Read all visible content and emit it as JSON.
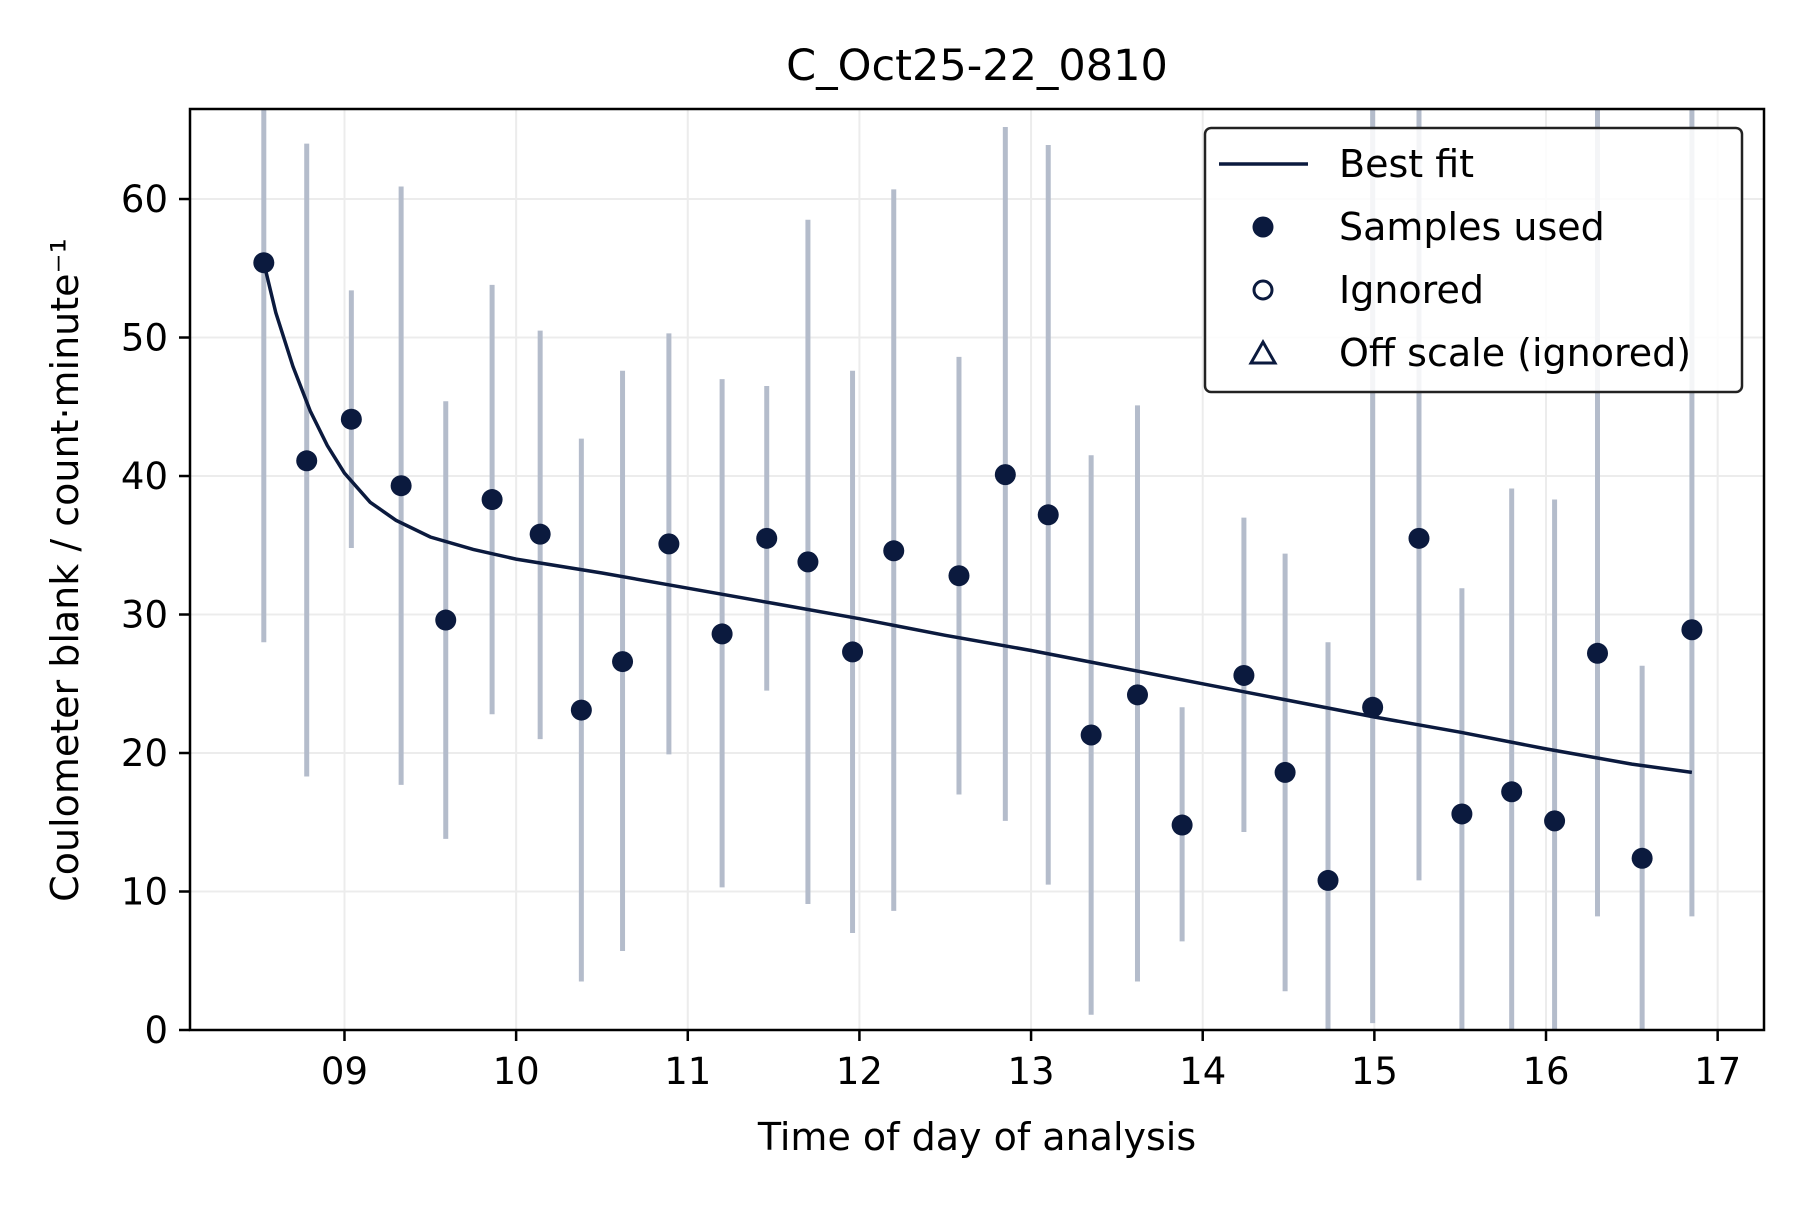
{
  "chart_data": {
    "type": "scatter",
    "title": "C_Oct25-22_0810",
    "xlabel": "Time of day of analysis",
    "ylabel": "Coulometer blank / count·minute⁻¹",
    "xlim": [
      8.1,
      17.27
    ],
    "ylim": [
      0,
      66.5
    ],
    "x_ticks": [
      {
        "value": 9,
        "label": "09"
      },
      {
        "value": 10,
        "label": "10"
      },
      {
        "value": 11,
        "label": "11"
      },
      {
        "value": 12,
        "label": "12"
      },
      {
        "value": 13,
        "label": "13"
      },
      {
        "value": 14,
        "label": "14"
      },
      {
        "value": 15,
        "label": "15"
      },
      {
        "value": 16,
        "label": "16"
      },
      {
        "value": 17,
        "label": "17"
      }
    ],
    "y_ticks": [
      {
        "value": 0,
        "label": "0"
      },
      {
        "value": 10,
        "label": "10"
      },
      {
        "value": 20,
        "label": "20"
      },
      {
        "value": 30,
        "label": "30"
      },
      {
        "value": 40,
        "label": "40"
      },
      {
        "value": 50,
        "label": "50"
      },
      {
        "value": 60,
        "label": "60"
      }
    ],
    "grid": true,
    "legend_position": "top-right",
    "legend": [
      {
        "label": "Best fit",
        "marker": "line"
      },
      {
        "label": "Samples used",
        "marker": "filled-circle"
      },
      {
        "label": "Ignored",
        "marker": "open-circle"
      },
      {
        "label": "Off scale (ignored)",
        "marker": "open-triangle"
      }
    ],
    "colors": {
      "series": "#0b1a3e",
      "errorbar": "#b4bccb",
      "grid": "#ececec"
    },
    "samples_used": [
      {
        "x": 8.53,
        "y": 55.4,
        "lo": 28.0,
        "hi": 66.5
      },
      {
        "x": 8.78,
        "y": 41.1,
        "lo": 18.3,
        "hi": 64.0
      },
      {
        "x": 9.04,
        "y": 44.1,
        "lo": 34.8,
        "hi": 53.4
      },
      {
        "x": 9.33,
        "y": 39.3,
        "lo": 17.7,
        "hi": 60.9
      },
      {
        "x": 9.59,
        "y": 29.6,
        "lo": 13.8,
        "hi": 45.4
      },
      {
        "x": 9.86,
        "y": 38.3,
        "lo": 22.8,
        "hi": 53.8
      },
      {
        "x": 10.14,
        "y": 35.8,
        "lo": 21.0,
        "hi": 50.5
      },
      {
        "x": 10.38,
        "y": 23.1,
        "lo": 3.5,
        "hi": 42.7
      },
      {
        "x": 10.62,
        "y": 26.6,
        "lo": 5.7,
        "hi": 47.6
      },
      {
        "x": 10.89,
        "y": 35.1,
        "lo": 19.9,
        "hi": 50.3
      },
      {
        "x": 11.2,
        "y": 28.6,
        "lo": 10.3,
        "hi": 47.0
      },
      {
        "x": 11.46,
        "y": 35.5,
        "lo": 24.5,
        "hi": 46.5
      },
      {
        "x": 11.7,
        "y": 33.8,
        "lo": 9.1,
        "hi": 58.5
      },
      {
        "x": 11.96,
        "y": 27.3,
        "lo": 7.0,
        "hi": 47.6
      },
      {
        "x": 12.2,
        "y": 34.6,
        "lo": 8.6,
        "hi": 60.7
      },
      {
        "x": 12.58,
        "y": 32.8,
        "lo": 17.0,
        "hi": 48.6
      },
      {
        "x": 12.85,
        "y": 40.1,
        "lo": 15.1,
        "hi": 65.2
      },
      {
        "x": 13.1,
        "y": 37.2,
        "lo": 10.5,
        "hi": 63.9
      },
      {
        "x": 13.35,
        "y": 21.3,
        "lo": 1.1,
        "hi": 41.5
      },
      {
        "x": 13.62,
        "y": 24.2,
        "lo": 3.5,
        "hi": 45.1
      },
      {
        "x": 13.88,
        "y": 14.8,
        "lo": 6.4,
        "hi": 23.3
      },
      {
        "x": 14.24,
        "y": 25.6,
        "lo": 14.3,
        "hi": 37.0
      },
      {
        "x": 14.48,
        "y": 18.6,
        "lo": 2.8,
        "hi": 34.4
      },
      {
        "x": 14.73,
        "y": 10.8,
        "lo": 0.0,
        "hi": 28.0
      },
      {
        "x": 14.99,
        "y": 23.3,
        "lo": 0.5,
        "hi": 66.5
      },
      {
        "x": 15.26,
        "y": 35.5,
        "lo": 10.8,
        "hi": 66.5
      },
      {
        "x": 15.51,
        "y": 15.6,
        "lo": 0.0,
        "hi": 31.9
      },
      {
        "x": 15.8,
        "y": 17.2,
        "lo": 0.0,
        "hi": 39.1
      },
      {
        "x": 16.05,
        "y": 15.1,
        "lo": 0.0,
        "hi": 38.3
      },
      {
        "x": 16.3,
        "y": 27.2,
        "lo": 8.2,
        "hi": 66.5
      },
      {
        "x": 16.56,
        "y": 12.4,
        "lo": 0.0,
        "hi": 26.3
      },
      {
        "x": 16.85,
        "y": 28.9,
        "lo": 8.2,
        "hi": 66.5
      }
    ],
    "best_fit": [
      {
        "x": 8.53,
        "y": 55.4
      },
      {
        "x": 8.6,
        "y": 51.8
      },
      {
        "x": 8.7,
        "y": 47.9
      },
      {
        "x": 8.8,
        "y": 44.7
      },
      {
        "x": 8.9,
        "y": 42.2
      },
      {
        "x": 9.0,
        "y": 40.2
      },
      {
        "x": 9.15,
        "y": 38.1
      },
      {
        "x": 9.3,
        "y": 36.8
      },
      {
        "x": 9.5,
        "y": 35.6
      },
      {
        "x": 9.75,
        "y": 34.7
      },
      {
        "x": 10.0,
        "y": 34.0
      },
      {
        "x": 10.5,
        "y": 33.0
      },
      {
        "x": 11.0,
        "y": 31.9
      },
      {
        "x": 11.5,
        "y": 30.8
      },
      {
        "x": 12.0,
        "y": 29.7
      },
      {
        "x": 12.5,
        "y": 28.5
      },
      {
        "x": 13.0,
        "y": 27.4
      },
      {
        "x": 13.5,
        "y": 26.2
      },
      {
        "x": 14.0,
        "y": 25.0
      },
      {
        "x": 14.5,
        "y": 23.8
      },
      {
        "x": 15.0,
        "y": 22.6
      },
      {
        "x": 15.5,
        "y": 21.5
      },
      {
        "x": 16.0,
        "y": 20.3
      },
      {
        "x": 16.5,
        "y": 19.2
      },
      {
        "x": 16.85,
        "y": 18.6
      }
    ]
  }
}
